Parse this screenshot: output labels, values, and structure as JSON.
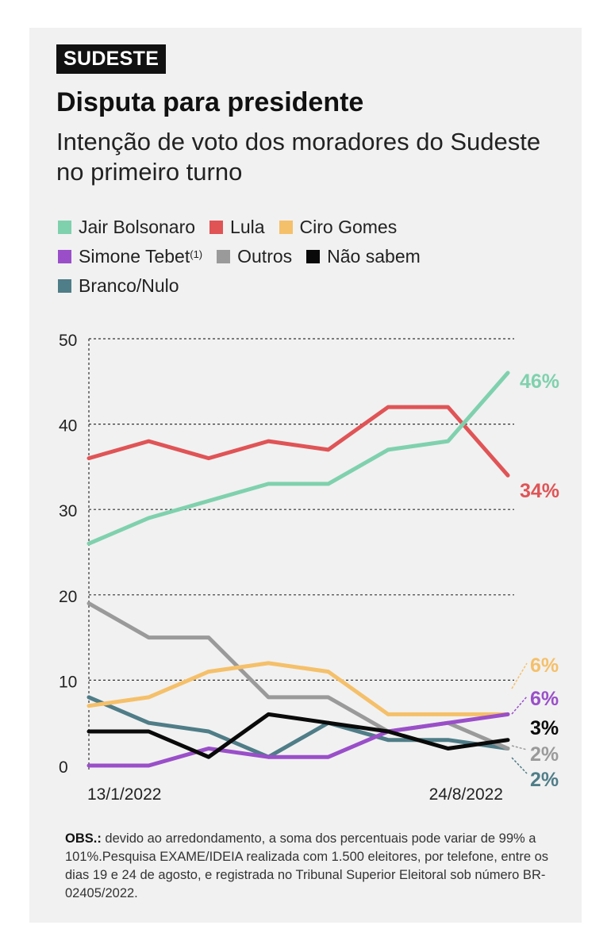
{
  "tag": "SUDESTE",
  "title": "Disputa para presidente",
  "subtitle": "Intenção de voto dos moradores do Sudeste no primeiro turno",
  "legend": [
    {
      "name": "Jair Bolsonaro",
      "color": "#7fd1ad"
    },
    {
      "name": "Lula",
      "color": "#e05456"
    },
    {
      "name": "Ciro Gomes",
      "color": "#f5c06a"
    },
    {
      "name": "Simone Tebet",
      "note": "(1)",
      "color": "#9a4fc9"
    },
    {
      "name": "Outros",
      "color": "#9a9a9a"
    },
    {
      "name": "Não sabem",
      "color": "#0a0a0a"
    },
    {
      "name": "Branco/Nulo",
      "color": "#4f7d88"
    }
  ],
  "chart_data": {
    "type": "line",
    "x_tick_labels": [
      "13/1/2022",
      "24/8/2022"
    ],
    "yticks": [
      0,
      10,
      20,
      30,
      40,
      50
    ],
    "ylim": [
      0,
      50
    ],
    "grid": "horizontal dashed",
    "series": [
      {
        "name": "Jair Bolsonaro",
        "color": "#7fd1ad",
        "values": [
          26,
          29,
          31,
          33,
          33,
          37,
          38,
          46
        ],
        "end_label": "46%"
      },
      {
        "name": "Lula",
        "color": "#e05456",
        "values": [
          36,
          38,
          36,
          38,
          37,
          42,
          42,
          34
        ],
        "end_label": "34%"
      },
      {
        "name": "Ciro Gomes",
        "color": "#f5c06a",
        "values": [
          7,
          8,
          11,
          12,
          11,
          6,
          6,
          6
        ],
        "end_label": "6%"
      },
      {
        "name": "Simone Tebet",
        "color": "#9a4fc9",
        "values": [
          0,
          0,
          2,
          1,
          1,
          4,
          5,
          6
        ],
        "end_label": "6%"
      },
      {
        "name": "Outros",
        "color": "#9a9a9a",
        "values": [
          19,
          15,
          15,
          8,
          8,
          4,
          5,
          2
        ],
        "end_label": "2%"
      },
      {
        "name": "Não sabem",
        "color": "#0a0a0a",
        "values": [
          4,
          4,
          1,
          6,
          5,
          4,
          2,
          3
        ],
        "end_label": "3%"
      },
      {
        "name": "Branco/Nulo",
        "color": "#4f7d88",
        "values": [
          8,
          5,
          4,
          1,
          5,
          3,
          3,
          2
        ],
        "end_label": "2%"
      }
    ]
  },
  "obs": {
    "label": "OBS.:",
    "text": " devido ao arredondamento, a soma dos percentuais pode variar de 99% a 101%.Pesquisa EXAME/IDEIA realizada com 1.500 eleitores, por telefone, entre os dias 19 e 24 de agosto, e registrada no Tribunal Superior Eleitoral sob número BR-02405/2022."
  }
}
